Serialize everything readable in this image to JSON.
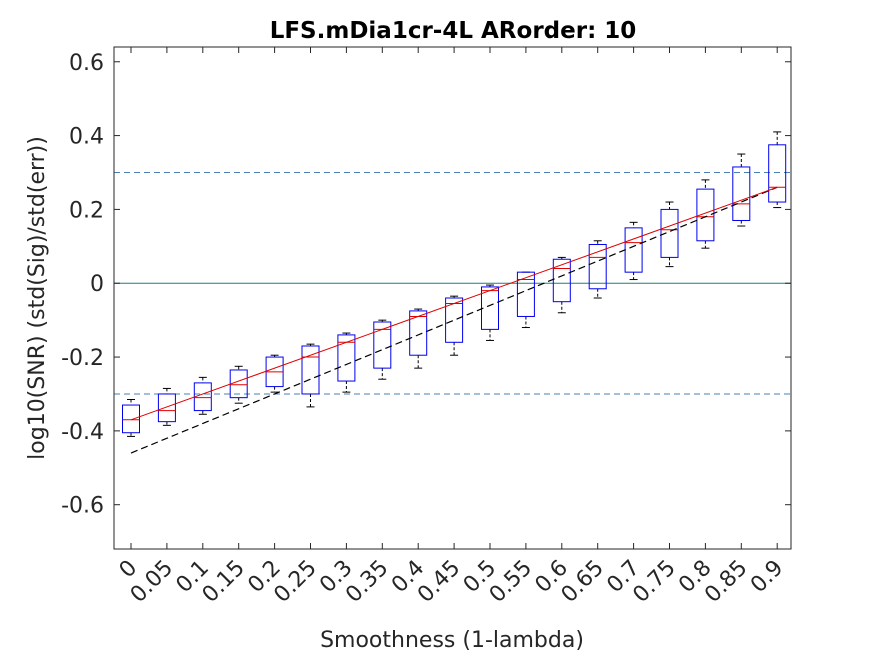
{
  "chart_data": {
    "type": "box",
    "title": "LFS.mDia1cr-4L ARorder: 10",
    "xlabel": "Smoothness (1-lambda)",
    "ylabel": "log10(SNR) (std(Sig)/std(err))",
    "ylim": [
      -0.72,
      0.64
    ],
    "yticks": [
      "-0.6",
      "-0.4",
      "-0.2",
      "0",
      "0.2",
      "0.4",
      "0.6"
    ],
    "categories": [
      "0",
      "0.05",
      "0.1",
      "0.15",
      "0.2",
      "0.25",
      "0.3",
      "0.35",
      "0.4",
      "0.45",
      "0.5",
      "0.55",
      "0.6",
      "0.65",
      "0.7",
      "0.75",
      "0.8",
      "0.85",
      "0.9"
    ],
    "boxes": [
      {
        "x": 0,
        "whisker_low": -0.415,
        "q1": -0.405,
        "median": -0.37,
        "q3": -0.33,
        "whisker_high": -0.315
      },
      {
        "x": 0.05,
        "whisker_low": -0.385,
        "q1": -0.375,
        "median": -0.345,
        "q3": -0.3,
        "whisker_high": -0.285
      },
      {
        "x": 0.1,
        "whisker_low": -0.355,
        "q1": -0.345,
        "median": -0.31,
        "q3": -0.27,
        "whisker_high": -0.255
      },
      {
        "x": 0.15,
        "whisker_low": -0.325,
        "q1": -0.31,
        "median": -0.275,
        "q3": -0.235,
        "whisker_high": -0.225
      },
      {
        "x": 0.2,
        "whisker_low": -0.295,
        "q1": -0.28,
        "median": -0.24,
        "q3": -0.2,
        "whisker_high": -0.195
      },
      {
        "x": 0.25,
        "whisker_low": -0.335,
        "q1": -0.3,
        "median": -0.2,
        "q3": -0.17,
        "whisker_high": -0.165
      },
      {
        "x": 0.3,
        "whisker_low": -0.295,
        "q1": -0.265,
        "median": -0.16,
        "q3": -0.14,
        "whisker_high": -0.135
      },
      {
        "x": 0.35,
        "whisker_low": -0.26,
        "q1": -0.23,
        "median": -0.125,
        "q3": -0.105,
        "whisker_high": -0.1
      },
      {
        "x": 0.4,
        "whisker_low": -0.23,
        "q1": -0.195,
        "median": -0.09,
        "q3": -0.075,
        "whisker_high": -0.07
      },
      {
        "x": 0.45,
        "whisker_low": -0.195,
        "q1": -0.16,
        "median": -0.055,
        "q3": -0.04,
        "whisker_high": -0.035
      },
      {
        "x": 0.5,
        "whisker_low": -0.155,
        "q1": -0.125,
        "median": -0.02,
        "q3": -0.01,
        "whisker_high": -0.005
      },
      {
        "x": 0.55,
        "whisker_low": -0.12,
        "q1": -0.09,
        "median": 0.01,
        "q3": 0.03,
        "whisker_high": 0.03
      },
      {
        "x": 0.6,
        "whisker_low": -0.08,
        "q1": -0.05,
        "median": 0.04,
        "q3": 0.065,
        "whisker_high": 0.07
      },
      {
        "x": 0.65,
        "whisker_low": -0.04,
        "q1": -0.015,
        "median": 0.07,
        "q3": 0.105,
        "whisker_high": 0.115
      },
      {
        "x": 0.7,
        "whisker_low": 0.01,
        "q1": 0.03,
        "median": 0.11,
        "q3": 0.15,
        "whisker_high": 0.165
      },
      {
        "x": 0.75,
        "whisker_low": 0.045,
        "q1": 0.07,
        "median": 0.145,
        "q3": 0.2,
        "whisker_high": 0.22
      },
      {
        "x": 0.8,
        "whisker_low": 0.095,
        "q1": 0.115,
        "median": 0.18,
        "q3": 0.255,
        "whisker_high": 0.28
      },
      {
        "x": 0.85,
        "whisker_low": 0.155,
        "q1": 0.17,
        "median": 0.215,
        "q3": 0.315,
        "whisker_high": 0.35
      },
      {
        "x": 0.9,
        "whisker_low": 0.205,
        "q1": 0.22,
        "median": 0.26,
        "q3": 0.375,
        "whisker_high": 0.41
      }
    ],
    "horizontal_lines": [
      {
        "y": 0.3,
        "style": "dashed",
        "color": "#4a7fb5"
      },
      {
        "y": -0.3,
        "style": "dashed",
        "color": "#4a7fb5"
      },
      {
        "y": 0,
        "style": "solid",
        "color": "#1f7f7f"
      }
    ],
    "median_line": {
      "color": "#e00000",
      "y_start": -0.37,
      "y_end": 0.26
    },
    "fit_line": {
      "style": "dashed",
      "color": "#000000",
      "x": [
        0,
        0.9
      ],
      "y": [
        -0.46,
        0.26
      ]
    },
    "box_color": "#0000ee",
    "grid": false
  }
}
